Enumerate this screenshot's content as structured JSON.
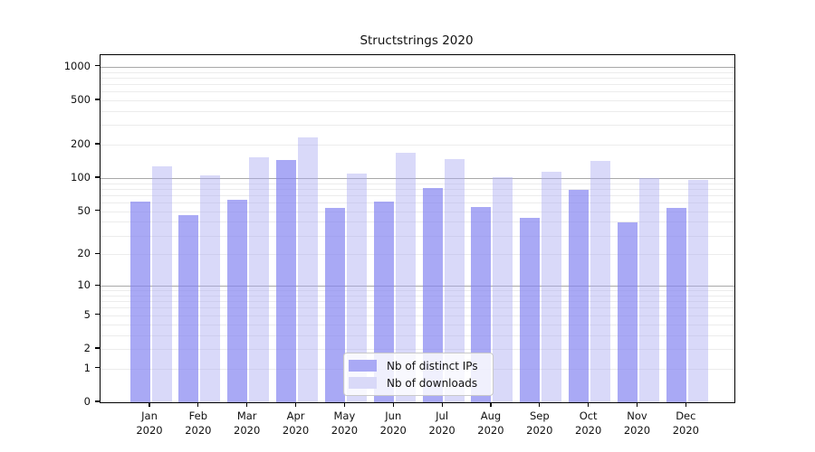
{
  "chart_data": {
    "type": "bar",
    "title": "Structstrings 2020",
    "x_months": [
      "Jan",
      "Feb",
      "Mar",
      "Apr",
      "May",
      "Jun",
      "Jul",
      "Aug",
      "Sep",
      "Oct",
      "Nov",
      "Dec"
    ],
    "x_year": "2020",
    "series": [
      {
        "name": "Nb of distinct IPs",
        "color": "#a9a9f5",
        "values": [
          61,
          46,
          64,
          147,
          54,
          61,
          82,
          55,
          44,
          78,
          40,
          54
        ]
      },
      {
        "name": "Nb of downloads",
        "color": "#d9d9f8",
        "values": [
          129,
          107,
          154,
          233,
          111,
          171,
          150,
          103,
          115,
          142,
          101,
          97
        ]
      }
    ],
    "y_ticks": [
      0,
      1,
      2,
      5,
      10,
      20,
      50,
      100,
      200,
      500,
      1000
    ],
    "yscale": "log10(1+x)",
    "ylim": [
      0,
      1270
    ],
    "grid": "horizontal log major+minor",
    "legend_position": "inside-bottom-center"
  }
}
